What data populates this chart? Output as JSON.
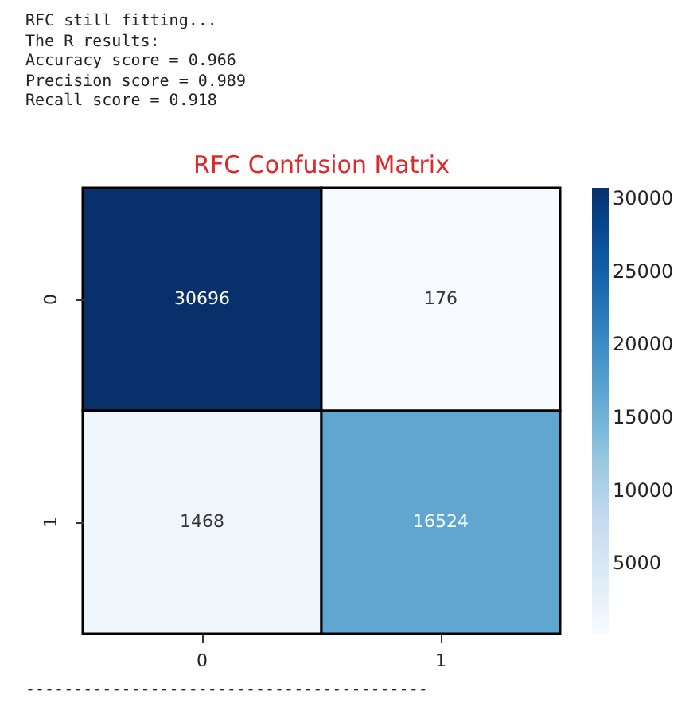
{
  "chart_data": {
    "type": "heatmap",
    "title": "RFC Confusion Matrix",
    "annotations": [
      "RFC still fitting...",
      "The R results:",
      "Accuracy score = 0.966",
      "Precision score = 0.989",
      "Recall score = 0.918",
      "------------------------------------------"
    ],
    "categories": [
      "0",
      "1"
    ],
    "y_categories": [
      "0",
      "1"
    ],
    "cells": [
      [
        30696,
        176
      ],
      [
        1468,
        16524
      ]
    ],
    "data_labels": true,
    "clim": [
      176,
      30696
    ],
    "cticks": [
      5000,
      10000,
      15000,
      20000,
      25000,
      30000
    ]
  }
}
